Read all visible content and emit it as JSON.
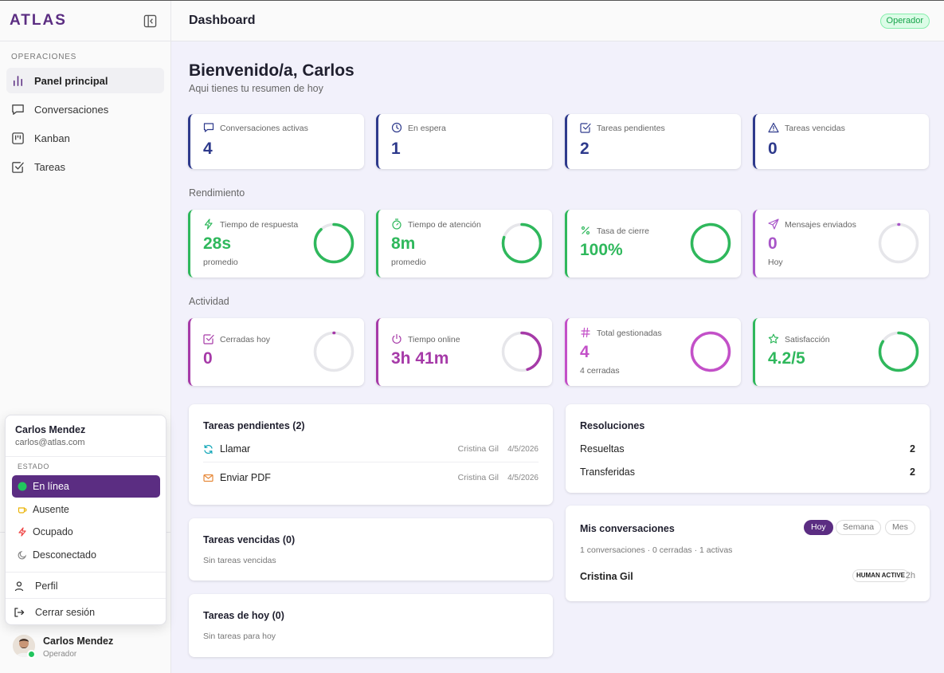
{
  "app": {
    "logo": "ATLAS"
  },
  "sidebar": {
    "section": "OPERACIONES",
    "items": [
      {
        "label": "Panel principal",
        "icon": "bar-chart-icon",
        "active": true
      },
      {
        "label": "Conversaciones",
        "icon": "message-icon"
      },
      {
        "label": "Kanban",
        "icon": "kanban-icon"
      },
      {
        "label": "Tareas",
        "icon": "checkbox-icon"
      }
    ]
  },
  "user": {
    "name": "Carlos Mendez",
    "email": "carlos@atlas.com",
    "role": "Operador"
  },
  "popover": {
    "status_title": "ESTADO",
    "statuses": [
      {
        "label": "En línea",
        "color": "#22c55e",
        "selected": true
      },
      {
        "label": "Ausente",
        "color": "#eab308"
      },
      {
        "label": "Ocupado",
        "color": "#ef4444"
      },
      {
        "label": "Desconectado",
        "color": "#888888"
      }
    ],
    "profile": "Perfil",
    "logout": "Cerrar sesión"
  },
  "header": {
    "title": "Dashboard",
    "role_badge": "Operador"
  },
  "welcome": {
    "title": "Bienvenido/a, Carlos",
    "subtitle": "Aqui tienes tu resumen de hoy"
  },
  "stats": [
    {
      "label": "Conversaciones activas",
      "value": "4",
      "icon": "message-icon"
    },
    {
      "label": "En espera",
      "value": "1",
      "icon": "clock-icon"
    },
    {
      "label": "Tareas pendientes",
      "value": "2",
      "icon": "checkbox-icon"
    },
    {
      "label": "Tareas vencidas",
      "value": "0",
      "icon": "warning-icon"
    }
  ],
  "rendimiento": {
    "title": "Rendimiento",
    "cards": [
      {
        "label": "Tiempo de respuesta",
        "value": "28s",
        "sub": "promedio",
        "color": "#2fb85c",
        "progress": 0.88,
        "icon": "lightning-icon"
      },
      {
        "label": "Tiempo de atención",
        "value": "8m",
        "sub": "promedio",
        "color": "#2fb85c",
        "progress": 0.8,
        "icon": "timer-icon"
      },
      {
        "label": "Tasa de cierre",
        "value": "100%",
        "sub": "",
        "color": "#2fb85c",
        "progress": 1.0,
        "icon": "percent-icon"
      },
      {
        "label": "Mensajes enviados",
        "value": "0",
        "sub": "Hoy",
        "color": "#a855c8",
        "progress": 0.0,
        "icon": "send-icon"
      }
    ]
  },
  "actividad": {
    "title": "Actividad",
    "cards": [
      {
        "label": "Cerradas hoy",
        "value": "0",
        "sub": "",
        "color": "#a63aa8",
        "progress": 0.0,
        "icon": "checkbox-icon"
      },
      {
        "label": "Tiempo online",
        "value": "3h 41m",
        "sub": "",
        "color": "#a63aa8",
        "progress": 0.45,
        "icon": "power-icon"
      },
      {
        "label": "Total gestionadas",
        "value": "4",
        "sub": "4 cerradas",
        "color": "#c350c8",
        "progress": 1.0,
        "icon": "hash-icon"
      },
      {
        "label": "Satisfacción",
        "value": "4.2/5",
        "sub": "",
        "color": "#2fb85c",
        "progress": 0.84,
        "icon": "star-icon"
      }
    ]
  },
  "tareas_pendientes": {
    "title": "Tareas pendientes (2)",
    "items": [
      {
        "label": "Llamar",
        "assignee": "Cristina Gil",
        "date": "4/5/2026",
        "icon": "refresh-icon"
      },
      {
        "label": "Enviar PDF",
        "assignee": "Cristina Gil",
        "date": "4/5/2026",
        "icon": "mail-icon"
      }
    ]
  },
  "tareas_vencidas": {
    "title": "Tareas vencidas (0)",
    "empty": "Sin tareas vencidas"
  },
  "tareas_hoy": {
    "title": "Tareas de hoy (0)",
    "empty": "Sin tareas para hoy"
  },
  "resoluciones": {
    "title": "Resoluciones",
    "rows": [
      {
        "label": "Resueltas",
        "value": "2"
      },
      {
        "label": "Transferidas",
        "value": "2"
      }
    ]
  },
  "mis_conversaciones": {
    "title": "Mis conversaciones",
    "tabs": [
      "Hoy",
      "Semana",
      "Mes"
    ],
    "summary": "1 conversaciones · 0 cerradas · 1 activas",
    "items": [
      {
        "name": "Cristina Gil",
        "badge": "HUMAN ACTIVE",
        "time": "2h"
      }
    ]
  }
}
